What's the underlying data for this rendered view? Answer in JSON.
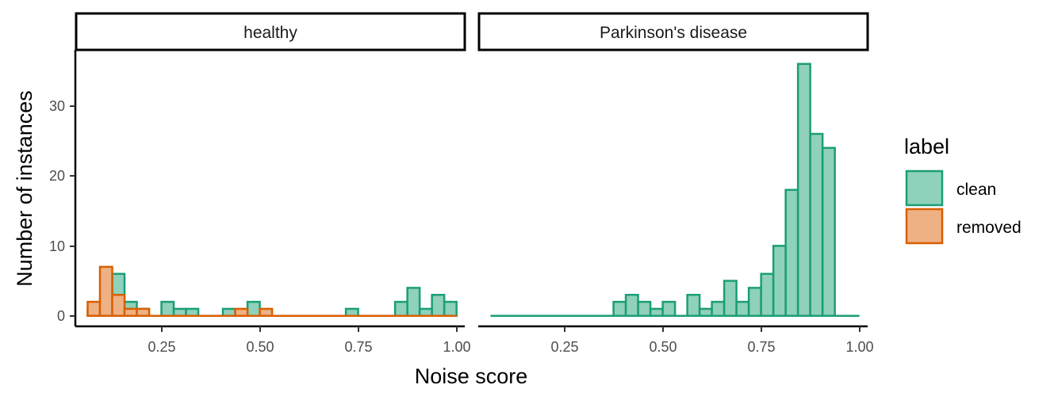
{
  "chart_data": {
    "type": "histogram",
    "xlabel": "Noise score",
    "ylabel": "Number of instances",
    "xlim": [
      0.05,
      1.0
    ],
    "ylim": [
      -1.5,
      38
    ],
    "x_ticks": [
      0.25,
      0.5,
      0.75,
      1.0
    ],
    "x_tick_labels": [
      "0.25",
      "0.50",
      "0.75",
      "1.00"
    ],
    "y_ticks": [
      0,
      10,
      20,
      30
    ],
    "y_tick_labels": [
      "0",
      "10",
      "20",
      "30"
    ],
    "bin_width": 0.03,
    "grid": false,
    "legend": {
      "title": "label",
      "position": "right",
      "items": [
        {
          "key": "clean",
          "label": "clean",
          "fill": "#8fd1ba",
          "stroke": "#1b9e77"
        },
        {
          "key": "removed",
          "label": "removed",
          "fill": "#eeb184",
          "stroke": "#d95f02"
        }
      ]
    },
    "panels": [
      {
        "title": "healthy",
        "x_range": [
          0.08,
          0.965
        ],
        "series": [
          {
            "name": "clean",
            "bins": [
              {
                "x": 0.095,
                "y": 1
              },
              {
                "x": 0.125,
                "y": 2
              },
              {
                "x": 0.155,
                "y": 6
              },
              {
                "x": 0.185,
                "y": 2
              },
              {
                "x": 0.215,
                "y": 1
              },
              {
                "x": 0.275,
                "y": 2
              },
              {
                "x": 0.305,
                "y": 1
              },
              {
                "x": 0.335,
                "y": 1
              },
              {
                "x": 0.425,
                "y": 1
              },
              {
                "x": 0.485,
                "y": 2
              },
              {
                "x": 0.725,
                "y": 1
              },
              {
                "x": 0.845,
                "y": 2
              },
              {
                "x": 0.875,
                "y": 4
              },
              {
                "x": 0.905,
                "y": 1
              },
              {
                "x": 0.935,
                "y": 3
              },
              {
                "x": 0.965,
                "y": 2
              }
            ]
          },
          {
            "name": "removed",
            "bins": [
              {
                "x": 0.095,
                "y": 2
              },
              {
                "x": 0.125,
                "y": 7
              },
              {
                "x": 0.155,
                "y": 3
              },
              {
                "x": 0.185,
                "y": 1
              },
              {
                "x": 0.215,
                "y": 1
              },
              {
                "x": 0.455,
                "y": 1
              },
              {
                "x": 0.515,
                "y": 1
              }
            ]
          }
        ]
      },
      {
        "title": "Parkinson's disease",
        "x_range": [
          0.08,
          0.965
        ],
        "series": [
          {
            "name": "clean",
            "bins": [
              {
                "x": 0.395,
                "y": 2
              },
              {
                "x": 0.425,
                "y": 3
              },
              {
                "x": 0.455,
                "y": 2
              },
              {
                "x": 0.485,
                "y": 1
              },
              {
                "x": 0.515,
                "y": 2
              },
              {
                "x": 0.575,
                "y": 3
              },
              {
                "x": 0.605,
                "y": 1
              },
              {
                "x": 0.635,
                "y": 2
              },
              {
                "x": 0.665,
                "y": 5
              },
              {
                "x": 0.695,
                "y": 2
              },
              {
                "x": 0.725,
                "y": 4
              },
              {
                "x": 0.755,
                "y": 6
              },
              {
                "x": 0.785,
                "y": 10
              },
              {
                "x": 0.815,
                "y": 18
              },
              {
                "x": 0.845,
                "y": 36
              },
              {
                "x": 0.875,
                "y": 26
              },
              {
                "x": 0.905,
                "y": 24
              }
            ]
          },
          {
            "name": "removed",
            "bins": []
          }
        ]
      }
    ]
  }
}
